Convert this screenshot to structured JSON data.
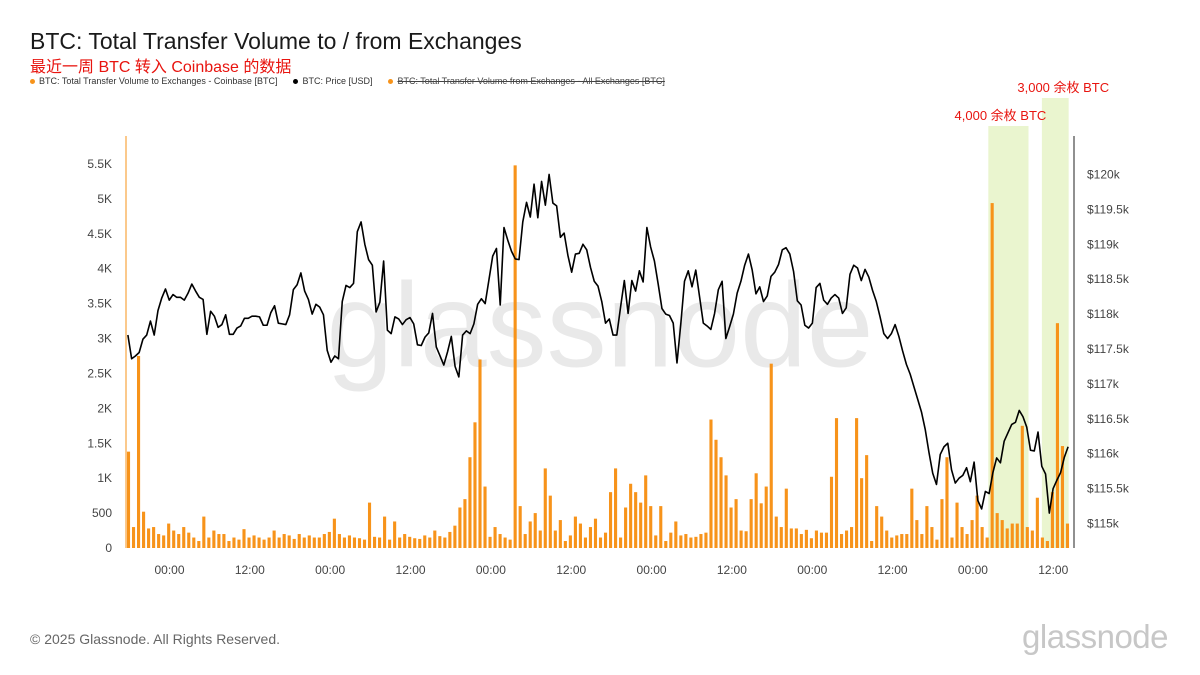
{
  "header": {
    "title": "BTC: Total Transfer Volume to / from Exchanges",
    "subtitle": "最近一周 BTC 转入 Coinbase 的数据"
  },
  "legend": [
    {
      "label": "BTC: Total Transfer Volume to Exchanges - Coinbase [BTC]",
      "color": "#f7931a",
      "enabled": true
    },
    {
      "label": "BTC: Price [USD]",
      "color": "#000000",
      "enabled": true
    },
    {
      "label": "BTC: Total Transfer Volume from Exchanges - All Exchanges [BTC]",
      "color": "#f7931a",
      "enabled": false
    }
  ],
  "annotations": [
    {
      "label": "4,000 余枚 BTC",
      "x_start": 128.3,
      "x_end": 134.3,
      "color": "#e8140f",
      "band_color": "#eaf5cf"
    },
    {
      "label": "3,000 余枚 BTC",
      "x_start": 136.3,
      "x_end": 140.3,
      "color": "#e8140f",
      "band_color": "#eaf5cf"
    }
  ],
  "footer": {
    "copyright": "© 2025 Glassnode. All Rights Reserved.",
    "brand": "glassnode",
    "watermark": "glassnode"
  },
  "chart_data": {
    "type": "bar",
    "x_unit": "hour index (1h bars)",
    "x_range": [
      -0.5,
      140.5
    ],
    "x_tick_labels": [
      {
        "x": 6,
        "label": "00:00"
      },
      {
        "x": 18,
        "label": "12:00"
      },
      {
        "x": 30,
        "label": "00:00"
      },
      {
        "x": 42,
        "label": "12:00"
      },
      {
        "x": 54,
        "label": "00:00"
      },
      {
        "x": 66,
        "label": "12:00"
      },
      {
        "x": 78,
        "label": "00:00"
      },
      {
        "x": 90,
        "label": "12:00"
      },
      {
        "x": 102,
        "label": "00:00"
      },
      {
        "x": 114,
        "label": "12:00"
      },
      {
        "x": 126,
        "label": "00:00"
      },
      {
        "x": 138,
        "label": "12:00"
      }
    ],
    "y_left": {
      "label": "",
      "range": [
        0,
        5700
      ],
      "ticks": [
        0,
        500,
        1000,
        1500,
        2000,
        2500,
        3000,
        3500,
        4000,
        4500,
        5000,
        5500
      ],
      "tick_labels": [
        "0",
        "500",
        "1K",
        "1.5K",
        "2K",
        "2.5K",
        "3K",
        "3.5K",
        "4K",
        "4.5K",
        "5K",
        "5.5K"
      ]
    },
    "y_right": {
      "label": "",
      "range": [
        114650,
        120350
      ],
      "ticks": [
        115000,
        115500,
        116000,
        116500,
        117000,
        117500,
        118000,
        118500,
        119000,
        119500,
        120000
      ],
      "tick_labels": [
        "$115k",
        "$115.5k",
        "$116k",
        "$116.5k",
        "$117k",
        "$117.5k",
        "$118k",
        "$118.5k",
        "$119k",
        "$119.5k",
        "$120k"
      ]
    },
    "grid": false,
    "series": [
      {
        "name": "BTC: Total Transfer Volume to Exchanges - Coinbase [BTC]",
        "type": "bar",
        "axis": "left",
        "color": "#f7931a",
        "values": [
          1380,
          300,
          2750,
          520,
          280,
          300,
          200,
          180,
          350,
          250,
          200,
          300,
          220,
          150,
          100,
          450,
          150,
          250,
          200,
          200,
          100,
          150,
          120,
          270,
          150,
          180,
          150,
          120,
          150,
          250,
          150,
          200,
          180,
          130,
          200,
          150,
          180,
          150,
          150,
          200,
          230,
          420,
          200,
          150,
          180,
          150,
          140,
          120,
          650,
          160,
          150,
          450,
          120,
          380,
          150,
          200,
          160,
          140,
          130,
          180,
          150,
          250,
          170,
          150,
          230,
          320,
          580,
          700,
          1300,
          1800,
          2700,
          880,
          160,
          300,
          200,
          150,
          120,
          5480,
          600,
          200,
          380,
          500,
          250,
          1140,
          750,
          250,
          400,
          100,
          180,
          450,
          350,
          150,
          300,
          420,
          150,
          220,
          800,
          1140,
          150,
          580,
          920,
          800,
          650,
          1040,
          600,
          180,
          600,
          100,
          220,
          380,
          180,
          200,
          150,
          160,
          200,
          220,
          1840,
          1550,
          1300,
          1040,
          580,
          700,
          250,
          240,
          700,
          1070,
          640,
          880,
          2640,
          450,
          300,
          850,
          280,
          280,
          200,
          260,
          140,
          250,
          220,
          220,
          1020,
          1860,
          200,
          250,
          300,
          1860,
          1000,
          1330,
          100,
          600,
          450,
          250,
          150,
          180,
          200,
          200,
          850,
          400,
          200,
          600,
          300,
          120,
          700,
          1300,
          150,
          650,
          300,
          200,
          400,
          750,
          300,
          150,
          4940,
          500,
          400,
          280,
          350,
          350,
          1750,
          300,
          250,
          720,
          150,
          100,
          800,
          3220,
          1460,
          350
        ]
      },
      {
        "name": "BTC: Price [USD]",
        "type": "line",
        "axis": "right",
        "color": "#000000",
        "values": [
          117700,
          117360,
          117400,
          117450,
          117640,
          117700,
          117900,
          117700,
          118050,
          118230,
          118360,
          118200,
          118280,
          118240,
          118240,
          118200,
          118300,
          118430,
          118330,
          118240,
          118210,
          117710,
          118040,
          117970,
          117810,
          117850,
          117990,
          117710,
          117710,
          117800,
          117830,
          117940,
          117940,
          117970,
          117970,
          117960,
          117840,
          117840,
          118020,
          118120,
          117870,
          117860,
          117850,
          117990,
          118350,
          118420,
          118590,
          118330,
          118210,
          118000,
          118140,
          118100,
          117990,
          117480,
          117310,
          117400,
          117360,
          118180,
          118410,
          118380,
          118440,
          119180,
          119320,
          119000,
          118780,
          118700,
          118030,
          118170,
          118760,
          117770,
          117720,
          117960,
          117930,
          117850,
          117920,
          117950,
          117860,
          117560,
          117550,
          117670,
          117730,
          118010,
          117530,
          117400,
          117270,
          117460,
          117680,
          117250,
          117100,
          117700,
          117760,
          117720,
          117860,
          118140,
          118220,
          118150,
          118490,
          118830,
          118940,
          118130,
          119240,
          119060,
          118900,
          118790,
          118780,
          119320,
          119600,
          119390,
          119860,
          119380,
          119900,
          119560,
          120000,
          119590,
          119550,
          119100,
          119160,
          118840,
          118600,
          118860,
          118870,
          119000,
          118920,
          118670,
          118470,
          118400,
          118180,
          117870,
          117930,
          117700,
          117700,
          118100,
          118480,
          118010,
          118480,
          118330,
          118620,
          118460,
          119240,
          118960,
          118760,
          118430,
          118080,
          118000,
          117980,
          117870,
          117300,
          117850,
          118470,
          118620,
          118390,
          118630,
          118250,
          117870,
          117830,
          117780,
          118010,
          118350,
          118470,
          117650,
          117820,
          118000,
          118300,
          118470,
          118700,
          118860,
          118630,
          118290,
          118390,
          118180,
          118260,
          118540,
          118600,
          118710,
          118920,
          118950,
          118860,
          118610,
          118190,
          118130,
          117840,
          117800,
          117870,
          118380,
          118440,
          118200,
          118140,
          118230,
          118280,
          118230,
          118010,
          118090,
          118570,
          118700,
          118660,
          118480,
          118640,
          118530,
          118340,
          118180,
          117960,
          117720,
          117650,
          117720,
          117850,
          117680,
          117470,
          117280,
          117140,
          116960,
          116780,
          116600,
          116350,
          116020,
          115720,
          115560,
          115990,
          116100,
          116150,
          115770,
          115580,
          115650,
          115690,
          115800,
          115600,
          115880,
          115330,
          115210,
          115460,
          115430,
          115730,
          115940,
          115870,
          116180,
          116300,
          116420,
          116450,
          116620,
          116530,
          116380,
          116050,
          116040,
          116310,
          115820,
          115710,
          115150,
          115500,
          115620,
          115730,
          115950,
          116100
        ]
      }
    ]
  }
}
